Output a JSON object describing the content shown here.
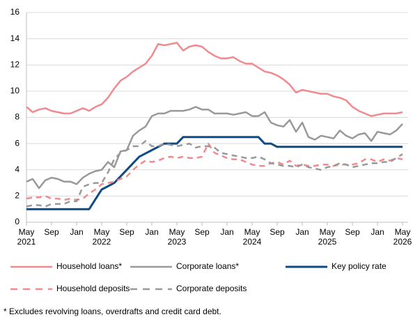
{
  "chart_data": {
    "type": "line",
    "note": "* Excludes revolving loans, overdrafts and credit card debt.",
    "categories": [
      "May\n2021",
      null,
      null,
      null,
      "Sep",
      null,
      null,
      null,
      "Jan",
      null,
      null,
      null,
      "May\n2022",
      null,
      null,
      null,
      "Sep",
      null,
      null,
      null,
      "Jan",
      null,
      null,
      null,
      "May\n2023",
      null,
      null,
      null,
      "Sep",
      null,
      null,
      null,
      "Jan",
      null,
      null,
      null,
      "May\n2024",
      null,
      null,
      null,
      "Sep",
      null,
      null,
      null,
      "Jan",
      null,
      null,
      null,
      "May\n2025",
      null,
      null,
      null,
      "Sep",
      null,
      null,
      null,
      "Jan",
      null,
      null,
      null,
      "May\n2026"
    ],
    "series": [
      {
        "name": "Household loans*",
        "color": "#f08a8f",
        "dashed": false,
        "values": [
          8.8,
          8.4,
          8.6,
          8.7,
          8.5,
          8.4,
          8.3,
          8.3,
          8.5,
          8.7,
          8.5,
          8.8,
          9.0,
          9.5,
          10.2,
          10.8,
          11.1,
          11.5,
          11.8,
          12.1,
          12.7,
          13.6,
          13.5,
          13.6,
          13.7,
          13.1,
          13.4,
          13.5,
          13.4,
          13.0,
          12.7,
          12.5,
          12.5,
          12.6,
          12.3,
          12.1,
          12.1,
          11.8,
          11.5,
          11.4,
          11.2,
          10.9,
          10.5,
          9.9,
          10.1,
          10.0,
          9.9,
          9.8,
          9.8,
          9.6,
          9.5,
          9.3,
          8.8,
          8.5,
          8.3,
          8.1,
          8.2,
          8.3,
          8.3,
          8.3,
          8.4
        ]
      },
      {
        "name": "Corporate loans*",
        "color": "#999999",
        "dashed": false,
        "values": [
          3.1,
          3.3,
          2.6,
          3.2,
          3.4,
          3.3,
          3.1,
          3.1,
          2.9,
          3.4,
          3.7,
          3.9,
          4.0,
          4.6,
          4.2,
          5.4,
          5.5,
          6.6,
          7.0,
          7.3,
          8.1,
          8.3,
          8.3,
          8.5,
          8.5,
          8.5,
          8.6,
          8.8,
          8.6,
          8.6,
          8.3,
          8.3,
          8.3,
          8.2,
          8.3,
          8.4,
          8.1,
          8.1,
          8.4,
          7.6,
          7.4,
          7.3,
          7.8,
          6.9,
          7.6,
          6.5,
          6.3,
          6.6,
          6.5,
          6.4,
          7.0,
          6.6,
          6.4,
          6.7,
          6.8,
          6.2,
          6.9,
          6.8,
          6.7,
          7.0,
          7.5
        ]
      },
      {
        "name": "Key policy rate",
        "color": "#0d4a86",
        "dashed": false,
        "values": [
          1,
          1,
          1,
          1,
          1,
          1,
          1,
          1,
          1,
          1,
          1,
          1.75,
          2.5,
          2.75,
          3.0,
          3.5,
          4.0,
          4.5,
          5.0,
          5.25,
          5.5,
          5.75,
          6.0,
          6.0,
          6.0,
          6.5,
          6.5,
          6.5,
          6.5,
          6.5,
          6.5,
          6.5,
          6.5,
          6.5,
          6.5,
          6.5,
          6.5,
          6.5,
          6.0,
          6.0,
          5.75,
          5.75,
          5.75,
          5.75,
          5.75,
          5.75,
          5.75,
          5.75,
          5.75,
          5.75,
          5.75,
          5.75,
          5.75,
          5.75,
          5.75,
          5.75,
          5.75,
          5.75,
          5.75,
          5.75,
          5.75
        ]
      },
      {
        "name": "Household deposits",
        "color": "#f08a8f",
        "dashed": true,
        "values": [
          1.8,
          1.9,
          1.9,
          2.0,
          1.8,
          1.8,
          1.7,
          1.8,
          1.7,
          1.8,
          2.2,
          2.5,
          2.9,
          3.0,
          3.1,
          3.3,
          3.5,
          4.0,
          4.4,
          4.7,
          4.6,
          4.7,
          4.9,
          5.0,
          4.9,
          5.0,
          4.9,
          4.9,
          5.0,
          6.0,
          5.3,
          5.1,
          4.9,
          4.8,
          4.8,
          4.6,
          4.4,
          4.3,
          4.3,
          4.5,
          4.6,
          4.4,
          4.7,
          4.3,
          4.4,
          4.3,
          4.3,
          4.4,
          4.4,
          4.3,
          4.4,
          4.4,
          4.4,
          4.5,
          4.8,
          4.8,
          4.6,
          4.8,
          4.7,
          4.9,
          4.8
        ]
      },
      {
        "name": "Corporate deposits",
        "color": "#999999",
        "dashed": true,
        "values": [
          1.2,
          1.3,
          1.3,
          1.2,
          1.4,
          1.4,
          1.4,
          1.6,
          1.6,
          2.7,
          2.9,
          3.0,
          3.0,
          3.8,
          4.8,
          5.3,
          5.5,
          5.8,
          5.8,
          6.2,
          5.8,
          5.8,
          6.0,
          5.9,
          5.8,
          5.9,
          6.0,
          5.7,
          5.8,
          5.8,
          5.7,
          5.3,
          5.2,
          5.1,
          5.0,
          4.9,
          4.9,
          5.0,
          4.8,
          4.5,
          4.4,
          4.3,
          4.3,
          4.2,
          4.4,
          4.2,
          4.1,
          4.0,
          4.2,
          4.3,
          4.5,
          4.4,
          4.2,
          4.3,
          4.4,
          4.5,
          4.5,
          4.6,
          4.6,
          4.9,
          5.2
        ]
      }
    ],
    "ylim": [
      0,
      16
    ],
    "yticks": [
      0,
      2,
      4,
      6,
      8,
      10,
      12,
      14,
      16
    ],
    "grid": true
  }
}
